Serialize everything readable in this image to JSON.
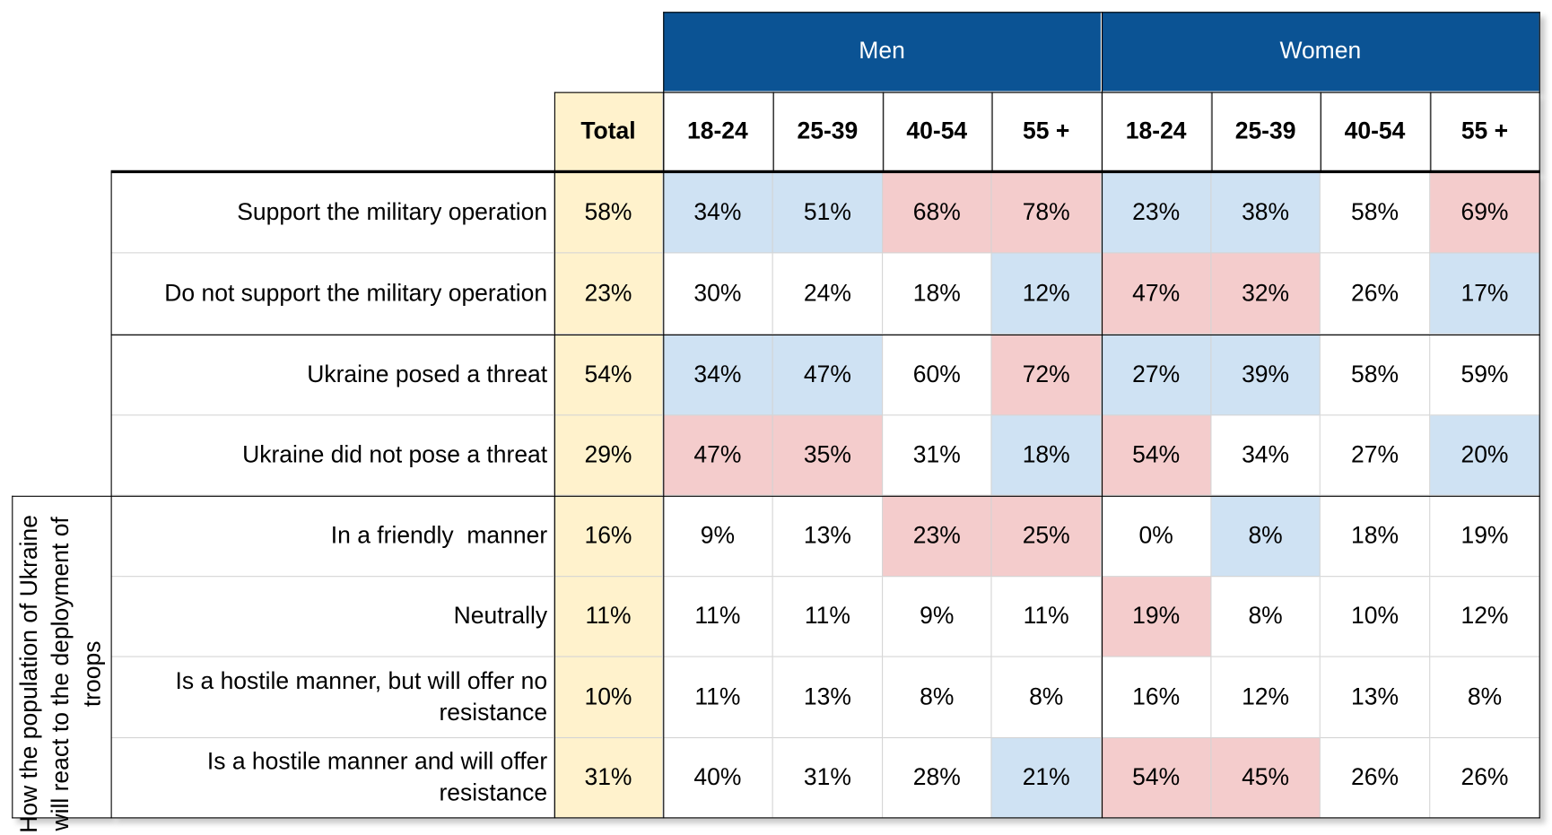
{
  "header": {
    "groups": [
      "Men",
      "Women"
    ],
    "total": "Total",
    "ages": [
      "18-24",
      "25-39",
      "40-54",
      "55 +",
      "18-24",
      "25-39",
      "40-54",
      "55 +"
    ]
  },
  "side_label": "How the population of Ukraine will react to the deployment of troops",
  "colors": {
    "header": "#0b5394",
    "total": "#fff2cc",
    "blue": "#cfe2f3",
    "red": "#f4cccc"
  },
  "rows": [
    {
      "label": "Support the military operation",
      "total": "58%",
      "values": [
        "34%",
        "51%",
        "68%",
        "78%",
        "23%",
        "38%",
        "58%",
        "69%"
      ],
      "highlights": [
        "blue",
        "blue",
        "red",
        "red",
        "blue",
        "blue",
        null,
        "red"
      ]
    },
    {
      "label": "Do not support the military operation",
      "total": "23%",
      "values": [
        "30%",
        "24%",
        "18%",
        "12%",
        "47%",
        "32%",
        "26%",
        "17%"
      ],
      "highlights": [
        null,
        null,
        null,
        "blue",
        "red",
        "red",
        null,
        "blue"
      ]
    },
    {
      "label": "Ukraine posed a threat",
      "total": "54%",
      "values": [
        "34%",
        "47%",
        "60%",
        "72%",
        "27%",
        "39%",
        "58%",
        "59%"
      ],
      "highlights": [
        "blue",
        "blue",
        null,
        "red",
        "blue",
        "blue",
        null,
        null
      ]
    },
    {
      "label": "Ukraine did not pose a threat",
      "total": "29%",
      "values": [
        "47%",
        "35%",
        "31%",
        "18%",
        "54%",
        "34%",
        "27%",
        "20%"
      ],
      "highlights": [
        "red",
        "red",
        null,
        "blue",
        "red",
        null,
        null,
        "blue"
      ]
    },
    {
      "label": "In a friendly  manner",
      "total": "16%",
      "values": [
        "9%",
        "13%",
        "23%",
        "25%",
        "0%",
        "8%",
        "18%",
        "19%"
      ],
      "highlights": [
        null,
        null,
        "red",
        "red",
        null,
        "blue",
        null,
        null
      ]
    },
    {
      "label": "Neutrally",
      "total": "11%",
      "values": [
        "11%",
        "11%",
        "9%",
        "11%",
        "19%",
        "8%",
        "10%",
        "12%"
      ],
      "highlights": [
        null,
        null,
        null,
        null,
        "red",
        null,
        null,
        null
      ]
    },
    {
      "label": "Is a hostile manner, but will offer no resistance",
      "total": "10%",
      "values": [
        "11%",
        "13%",
        "8%",
        "8%",
        "16%",
        "12%",
        "13%",
        "8%"
      ],
      "highlights": [
        null,
        null,
        null,
        null,
        null,
        null,
        null,
        null
      ]
    },
    {
      "label": "Is a hostile manner and will offer resistance",
      "total": "31%",
      "values": [
        "40%",
        "31%",
        "28%",
        "21%",
        "54%",
        "45%",
        "26%",
        "26%"
      ],
      "highlights": [
        null,
        null,
        null,
        "blue",
        "red",
        "red",
        null,
        null
      ]
    }
  ]
}
